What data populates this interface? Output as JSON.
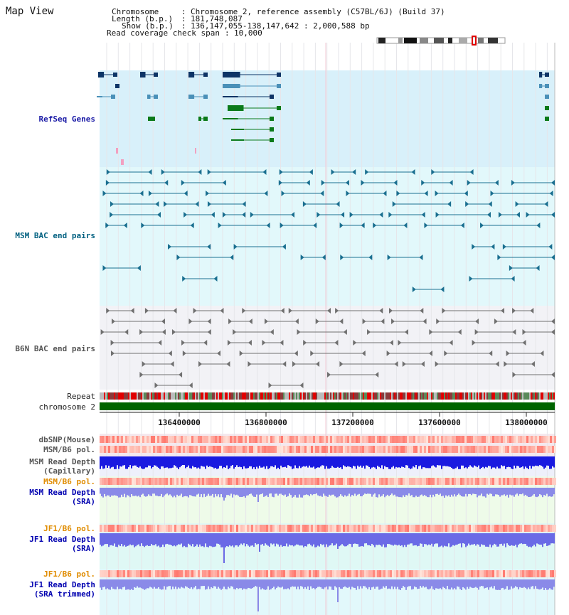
{
  "view_title": "Map View",
  "info": {
    "chromosome_key": "Chromosome",
    "chromosome_val": "Chromosome 2, reference assembly (C57BL/6J) (Build 37)",
    "length_key": "Length (b.p.)",
    "length_val": "181,748,087",
    "show_key": "Show (b.p.)",
    "show_val": "136,147,055-138,147,642 : 2,000,588 bp",
    "span_key": "Read coverage check span",
    "span_val": "10,000"
  },
  "tracks": {
    "refseq": "RefSeq Genes",
    "msm_bac": "MSM BAC end pairs",
    "b6n_bac": "B6N BAC end pairs",
    "repeat": "Repeat",
    "chromosome": "chromosome 2",
    "dbsnp": "dbSNP(Mouse)",
    "msm_b6_pol_1": "MSM/B6 pol.",
    "msm_depth_cap_1": "MSM Read Depth",
    "msm_depth_cap_2": "(Capillary)",
    "msm_b6_pol_2": "MSM/B6 pol.",
    "msm_depth_sra_1": "MSM Read Depth",
    "msm_depth_sra_2": "(SRA)",
    "jf1_b6_pol_1": "JF1/B6 pol.",
    "jf1_depth_sra_1": "JF1 Read Depth",
    "jf1_depth_sra_2": "(SRA)",
    "jf1_b6_pol_2": "JF1/B6 pol.",
    "jf1_depth_trim_1": "JF1 Read Depth",
    "jf1_depth_trim_2": "(SRA trimmed)"
  },
  "axis": {
    "ticks": [
      "136400000",
      "136800000",
      "137200000",
      "137600000",
      "138000000"
    ]
  },
  "colors": {
    "refseq_label": "#1a1aa6",
    "msm_label": "#006080",
    "b6n_label": "#555555",
    "pol_label": "#e08c00",
    "depth_label": "#0000b0",
    "chromosome_bar": "#006400"
  }
}
